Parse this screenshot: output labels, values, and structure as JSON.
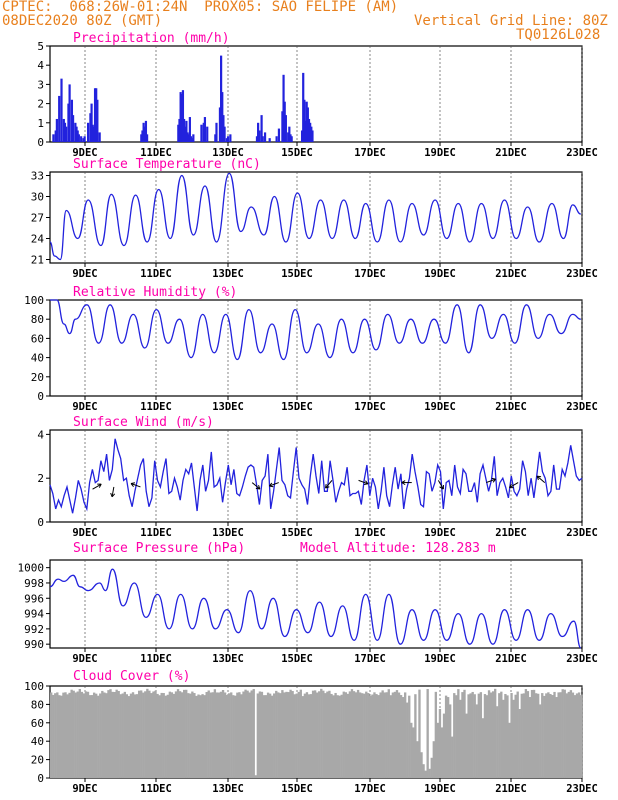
{
  "header": {
    "line1": "CPTEC:  068:26W-01:24N  PROX05: SAO FELIPE (AM)",
    "line2_left": "08DEC2020 80Z (GMT)",
    "line2_right": "Vertical Grid Line: 80Z",
    "line3_right": "TQ0126L028"
  },
  "colors": {
    "header": "#e8801e",
    "title": "#ff00aa",
    "line": "#2222dd",
    "bar": "#2222dd",
    "cloud": "#a8a8a8",
    "grid": "#555555"
  },
  "x_labels": [
    "9DEC",
    "11DEC",
    "13DEC",
    "15DEC",
    "17DEC",
    "19DEC",
    "21DEC",
    "23DEC"
  ],
  "chart_data": [
    {
      "type": "bar",
      "title": "Precipitation (mm/h)",
      "ylim": [
        0,
        5
      ],
      "yticks": [
        0,
        1,
        2,
        3,
        4,
        5
      ],
      "x": [
        0.2,
        0.4,
        0.5,
        0.7,
        0.9,
        1.1,
        1.2,
        1.3,
        1.5,
        1.6,
        1.8,
        1.9,
        2.1,
        2.2,
        2.3,
        2.4,
        2.6,
        2.8,
        2.9,
        3.2,
        3.4,
        3.5,
        3.6,
        3.7,
        3.8,
        3.9,
        4.0,
        4.2,
        7.8,
        7.9,
        8.0,
        8.1,
        8.2,
        8.3,
        11.0,
        11.1,
        11.2,
        11.3,
        11.4,
        11.5,
        11.6,
        11.7,
        11.8,
        11.9,
        12.0,
        12.1,
        12.2,
        12.3,
        13.0,
        13.2,
        13.3,
        13.5,
        14.2,
        14.3,
        14.6,
        14.7,
        14.8,
        14.9,
        15.0,
        15.2,
        15.3,
        15.5,
        17.8,
        17.9,
        18.0,
        18.2,
        18.3,
        18.5,
        18.9,
        19.5,
        19.7,
        20.0,
        20.1,
        20.2,
        20.3,
        20.5,
        20.6,
        20.7,
        20.8,
        21.7,
        21.8,
        21.9,
        22.0,
        22.1,
        22.2,
        22.3,
        22.4,
        22.5,
        22.6
      ],
      "values": [
        0.4,
        0.6,
        1.2,
        2.4,
        3.3,
        1.2,
        1.0,
        0.8,
        2.0,
        3.0,
        2.2,
        1.4,
        1.0,
        0.8,
        0.6,
        0.4,
        0.3,
        0.2,
        0.3,
        1.0,
        1.5,
        2.0,
        0.9,
        0.8,
        2.8,
        2.8,
        2.2,
        0.5,
        0.4,
        0.6,
        1.0,
        0.8,
        1.1,
        0.4,
        0.9,
        1.2,
        2.6,
        2.5,
        2.7,
        1.2,
        0.8,
        1.1,
        0.5,
        0.4,
        1.3,
        0.3,
        0.2,
        0.4,
        0.9,
        1.0,
        1.3,
        0.8,
        0.4,
        1.0,
        1.8,
        4.5,
        2.6,
        1.4,
        0.8,
        0.2,
        0.3,
        0.4,
        0.3,
        1.0,
        0.6,
        1.4,
        0.3,
        0.5,
        0.2,
        0.3,
        0.7,
        1.6,
        3.5,
        2.1,
        1.4,
        0.5,
        0.8,
        0.4,
        0.3,
        0.6,
        3.6,
        2.2,
        1.1,
        2.1,
        1.8,
        1.2,
        1.0,
        0.8,
        0.6
      ]
    },
    {
      "type": "line",
      "title": "Surface Temperature (nC)",
      "ylim": [
        20.5,
        33.5
      ],
      "yticks": [
        21,
        24,
        27,
        30,
        33
      ],
      "peaks": [
        [
          0.0,
          23.5
        ],
        [
          0.4,
          21.5
        ],
        [
          0.9,
          21.0
        ],
        [
          1.4,
          28.0
        ],
        [
          2.4,
          24.0
        ],
        [
          3.3,
          29.5
        ],
        [
          4.4,
          23.0
        ],
        [
          5.3,
          30.3
        ],
        [
          6.4,
          23.0
        ],
        [
          7.4,
          30.2
        ],
        [
          8.4,
          23.5
        ],
        [
          9.4,
          31.0
        ],
        [
          10.4,
          24.0
        ],
        [
          11.4,
          33.0
        ],
        [
          12.4,
          24.5
        ],
        [
          13.4,
          31.5
        ],
        [
          14.4,
          23.5
        ],
        [
          15.5,
          33.3
        ],
        [
          16.5,
          25.0
        ],
        [
          17.4,
          28.5
        ],
        [
          18.5,
          24.5
        ],
        [
          19.4,
          30.0
        ],
        [
          20.4,
          23.5
        ],
        [
          21.4,
          30.5
        ],
        [
          22.4,
          24.0
        ],
        [
          23.4,
          29.5
        ],
        [
          24.4,
          24.0
        ],
        [
          25.4,
          29.5
        ],
        [
          26.4,
          24.0
        ],
        [
          27.3,
          29.0
        ],
        [
          28.3,
          23.5
        ],
        [
          29.3,
          29.5
        ],
        [
          30.3,
          23.5
        ],
        [
          31.3,
          29.0
        ],
        [
          32.3,
          24.5
        ],
        [
          33.3,
          29.5
        ],
        [
          34.3,
          24.0
        ],
        [
          35.3,
          29.0
        ],
        [
          36.3,
          23.5
        ],
        [
          37.3,
          29.0
        ],
        [
          38.3,
          24.0
        ],
        [
          39.3,
          29.5
        ],
        [
          40.3,
          24.0
        ],
        [
          41.3,
          28.5
        ],
        [
          42.3,
          23.5
        ],
        [
          43.4,
          29.0
        ],
        [
          44.4,
          24.0
        ],
        [
          45.2,
          28.8
        ],
        [
          45.9,
          27.5
        ]
      ]
    },
    {
      "type": "line",
      "title": "Relative Humidity (%)",
      "ylim": [
        0,
        100
      ],
      "yticks": [
        0,
        20,
        40,
        60,
        80,
        100
      ],
      "peaks": [
        [
          0.0,
          100
        ],
        [
          0.6,
          100
        ],
        [
          1.2,
          75
        ],
        [
          1.7,
          65
        ],
        [
          2.2,
          80
        ],
        [
          3.2,
          95
        ],
        [
          4.2,
          55
        ],
        [
          5.2,
          95
        ],
        [
          6.2,
          55
        ],
        [
          7.2,
          85
        ],
        [
          8.2,
          50
        ],
        [
          9.2,
          90
        ],
        [
          10.2,
          55
        ],
        [
          11.2,
          80
        ],
        [
          12.2,
          40
        ],
        [
          13.2,
          85
        ],
        [
          14.2,
          45
        ],
        [
          15.2,
          85
        ],
        [
          16.2,
          38
        ],
        [
          17.2,
          90
        ],
        [
          18.2,
          45
        ],
        [
          19.2,
          75
        ],
        [
          20.2,
          38
        ],
        [
          21.2,
          90
        ],
        [
          22.2,
          45
        ],
        [
          23.2,
          75
        ],
        [
          24.2,
          40
        ],
        [
          25.2,
          80
        ],
        [
          26.2,
          45
        ],
        [
          27.2,
          80
        ],
        [
          28.2,
          48
        ],
        [
          29.2,
          85
        ],
        [
          30.2,
          55
        ],
        [
          31.2,
          80
        ],
        [
          32.2,
          55
        ],
        [
          33.2,
          80
        ],
        [
          34.2,
          55
        ],
        [
          35.2,
          95
        ],
        [
          36.2,
          45
        ],
        [
          37.2,
          95
        ],
        [
          38.2,
          60
        ],
        [
          39.2,
          85
        ],
        [
          40.2,
          55
        ],
        [
          41.2,
          95
        ],
        [
          42.2,
          60
        ],
        [
          43.2,
          85
        ],
        [
          44.2,
          65
        ],
        [
          45.2,
          85
        ],
        [
          45.9,
          80
        ]
      ]
    },
    {
      "type": "line",
      "title": "Surface Wind (m/s)",
      "ylim": [
        0,
        4.2
      ],
      "yticks": [
        0,
        2,
        4
      ],
      "values": [
        1.7,
        1.3,
        0.6,
        1.0,
        0.7,
        1.2,
        1.6,
        1.0,
        0.4,
        1.1,
        1.9,
        1.5,
        0.9,
        0.6,
        1.8,
        2.4,
        1.8,
        1.9,
        2.8,
        2.3,
        3.1,
        1.9,
        2.4,
        3.8,
        3.3,
        2.9,
        1.9,
        2.0,
        1.2,
        0.7,
        1.4,
        2.0,
        2.6,
        2.9,
        1.4,
        0.7,
        1.1,
        2.8,
        1.9,
        1.6,
        2.3,
        2.9,
        1.3,
        1.4,
        2.0,
        1.6,
        1.0,
        1.9,
        2.4,
        2.2,
        2.7,
        1.6,
        0.5,
        1.9,
        2.6,
        1.4,
        1.9,
        3.2,
        1.6,
        1.7,
        2.0,
        0.9,
        1.8,
        2.6,
        1.7,
        2.4,
        1.3,
        1.2,
        1.6,
        2.1,
        2.5,
        2.6,
        2.5,
        1.7,
        0.8,
        1.9,
        2.1,
        3.1,
        0.6,
        1.4,
        2.4,
        3.4,
        1.9,
        1.7,
        1.2,
        1.1,
        2.3,
        3.4,
        2.0,
        1.7,
        1.5,
        0.8,
        2.1,
        3.1,
        2.1,
        1.3,
        2.8,
        1.4,
        1.4,
        2.8,
        1.9,
        0.9,
        1.4,
        1.8,
        1.7,
        2.5,
        1.2,
        1.3,
        1.3,
        1.4,
        0.8,
        1.9,
        2.6,
        1.2,
        2.0,
        1.6,
        0.6,
        1.4,
        2.5,
        1.2,
        0.7,
        1.7,
        2.5,
        1.5,
        2.2,
        0.6,
        1.5,
        2.0,
        3.1,
        2.3,
        1.6,
        0.8,
        0.7,
        2.3,
        2.2,
        1.4,
        1.8,
        2.6,
        2.3,
        0.6,
        1.8,
        1.9,
        1.2,
        2.6,
        1.6,
        1.3,
        2.4,
        2.2,
        1.4,
        1.4,
        1.8,
        0.9,
        2.2,
        2.6,
        2.0,
        1.4,
        1.9,
        3.0,
        1.2,
        1.8,
        2.0,
        1.6,
        1.1,
        2.1,
        1.4,
        1.2,
        1.5,
        2.8,
        2.3,
        1.2,
        2.0,
        1.1,
        2.1,
        3.2,
        2.3,
        2.0,
        1.2,
        1.4,
        2.6,
        1.5,
        1.5,
        2.4,
        2.1,
        2.7,
        3.5,
        2.8,
        2.1,
        1.9,
        2.0
      ],
      "arrows": [
        [
          0.08,
          1.5,
          -30
        ],
        [
          0.12,
          1.6,
          100
        ],
        [
          0.17,
          1.6,
          200
        ],
        [
          0.38,
          1.8,
          40
        ],
        [
          0.43,
          1.8,
          160
        ],
        [
          0.53,
          1.9,
          130
        ],
        [
          0.58,
          1.9,
          20
        ],
        [
          0.68,
          1.8,
          180
        ],
        [
          0.73,
          1.9,
          60
        ],
        [
          0.82,
          1.8,
          -20
        ],
        [
          0.88,
          1.8,
          150
        ],
        [
          0.93,
          1.8,
          220
        ]
      ]
    },
    {
      "type": "line",
      "title": "Surface Pressure (hPa)",
      "subtitle": "Model Altitude: 128.283 m",
      "ylim": [
        989.5,
        1001
      ],
      "yticks": [
        990,
        992,
        994,
        996,
        998,
        1000
      ],
      "peaks": [
        [
          0.0,
          997.5
        ],
        [
          0.7,
          998.5
        ],
        [
          1.2,
          998.2
        ],
        [
          2.0,
          999.0
        ],
        [
          2.6,
          997.5
        ],
        [
          3.3,
          997.0
        ],
        [
          4.3,
          998.0
        ],
        [
          4.8,
          997.0
        ],
        [
          5.4,
          999.8
        ],
        [
          6.3,
          995.0
        ],
        [
          7.3,
          998.0
        ],
        [
          8.3,
          993.5
        ],
        [
          9.3,
          996.5
        ],
        [
          10.3,
          992.0
        ],
        [
          11.3,
          996.5
        ],
        [
          12.3,
          992.0
        ],
        [
          13.3,
          996.0
        ],
        [
          14.3,
          992.0
        ],
        [
          15.3,
          994.5
        ],
        [
          16.3,
          991.5
        ],
        [
          17.3,
          997.0
        ],
        [
          18.3,
          992.0
        ],
        [
          19.3,
          996.0
        ],
        [
          20.3,
          991.0
        ],
        [
          21.3,
          994.5
        ],
        [
          22.3,
          991.5
        ],
        [
          23.3,
          995.5
        ],
        [
          24.3,
          991.0
        ],
        [
          25.3,
          995.0
        ],
        [
          26.3,
          990.5
        ],
        [
          27.3,
          996.5
        ],
        [
          28.3,
          990.5
        ],
        [
          29.3,
          996.5
        ],
        [
          30.3,
          990.0
        ],
        [
          31.3,
          994.5
        ],
        [
          32.3,
          990.5
        ],
        [
          33.3,
          994.5
        ],
        [
          34.3,
          990.5
        ],
        [
          35.3,
          994.0
        ],
        [
          36.3,
          990.0
        ],
        [
          37.3,
          994.0
        ],
        [
          38.3,
          990.0
        ],
        [
          39.3,
          994.5
        ],
        [
          40.3,
          990.5
        ],
        [
          41.3,
          994.5
        ],
        [
          42.3,
          990.5
        ],
        [
          43.3,
          994.0
        ],
        [
          44.3,
          991.0
        ],
        [
          45.3,
          993.0
        ],
        [
          45.9,
          989.5
        ]
      ]
    },
    {
      "type": "bar",
      "title": "Cloud Cover (%)",
      "ylim": [
        0,
        100
      ],
      "yticks": [
        0,
        20,
        40,
        60,
        80,
        100
      ],
      "base": 95,
      "dips": [
        [
          0.05,
          94
        ],
        [
          0.28,
          90
        ],
        [
          0.31,
          93
        ],
        [
          0.36,
          94
        ],
        [
          0.385,
          3
        ],
        [
          0.44,
          93
        ],
        [
          0.47,
          96
        ],
        [
          0.54,
          90
        ],
        [
          0.58,
          93
        ],
        [
          0.62,
          93
        ],
        [
          0.64,
          90
        ],
        [
          0.66,
          88
        ],
        [
          0.67,
          82
        ],
        [
          0.675,
          60
        ],
        [
          0.68,
          55
        ],
        [
          0.69,
          40
        ],
        [
          0.695,
          28
        ],
        [
          0.7,
          15
        ],
        [
          0.705,
          8
        ],
        [
          0.71,
          10
        ],
        [
          0.715,
          22
        ],
        [
          0.72,
          40
        ],
        [
          0.725,
          60
        ],
        [
          0.73,
          75
        ],
        [
          0.735,
          55
        ],
        [
          0.74,
          70
        ],
        [
          0.745,
          88
        ],
        [
          0.75,
          80
        ],
        [
          0.755,
          45
        ],
        [
          0.76,
          90
        ],
        [
          0.77,
          85
        ],
        [
          0.78,
          70
        ],
        [
          0.79,
          92
        ],
        [
          0.8,
          80
        ],
        [
          0.81,
          65
        ],
        [
          0.82,
          90
        ],
        [
          0.84,
          78
        ],
        [
          0.85,
          85
        ],
        [
          0.86,
          60
        ],
        [
          0.87,
          85
        ],
        [
          0.88,
          75
        ],
        [
          0.89,
          92
        ],
        [
          0.9,
          88
        ],
        [
          0.92,
          80
        ],
        [
          0.93,
          92
        ],
        [
          0.95,
          88
        ],
        [
          0.97,
          92
        ]
      ]
    }
  ],
  "panels_text": {
    "p0_title": "Precipitation (mm/h)",
    "p1_title": "Surface Temperature (nC)",
    "p2_title": "Relative Humidity (%)",
    "p3_title": "Surface Wind (m/s)",
    "p4_title": "Surface Pressure (hPa)",
    "p4_sub": "Model Altitude: 128.283 m",
    "p5_title": "Cloud Cover (%)"
  }
}
